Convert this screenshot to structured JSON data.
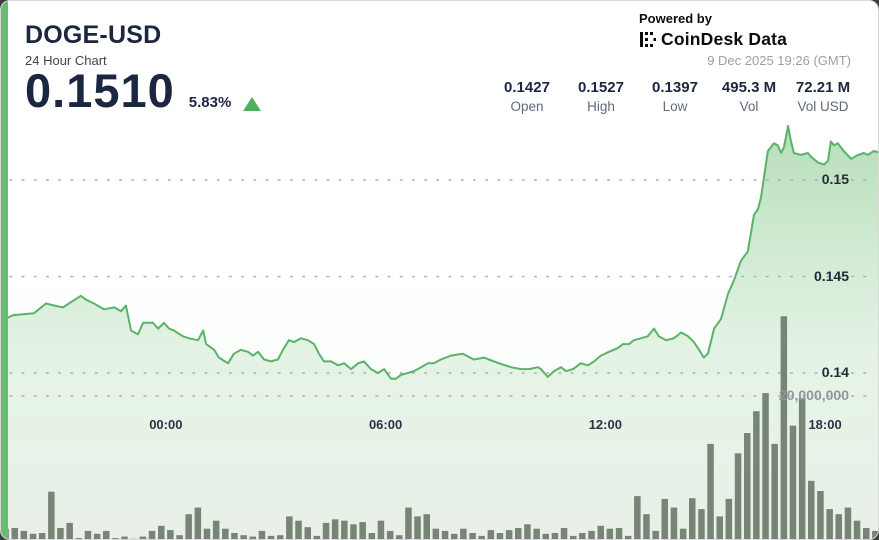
{
  "header": {
    "symbol": "DOGE-USD",
    "subtitle": "24 Hour Chart",
    "price": "0.1510",
    "change_pct": "5.83%",
    "change_direction": "up"
  },
  "stats": [
    {
      "value": "0.1427",
      "label": "Open"
    },
    {
      "value": "0.1527",
      "label": "High"
    },
    {
      "value": "0.1397",
      "label": "Low"
    },
    {
      "value": "495.3 M",
      "label": "Vol"
    },
    {
      "value": "72.21 M",
      "label": "Vol USD"
    }
  ],
  "attribution": {
    "powered_by": "Powered by",
    "brand": "CoinDesk Data",
    "timestamp": "9 Dec 2025 19:26 (GMT)"
  },
  "chart_data": {
    "type": "area",
    "title": "DOGE-USD 24 Hour Chart",
    "x_axis": {
      "unit": "hours_from_start",
      "range": [
        0,
        24
      ],
      "ticks": [
        {
          "label": "00:00",
          "t": 4.5
        },
        {
          "label": "06:00",
          "t": 10.5
        },
        {
          "label": "12:00",
          "t": 16.5
        },
        {
          "label": "18:00",
          "t": 22.5
        }
      ]
    },
    "y_axis_price": {
      "ticks": [
        {
          "label": "0.15",
          "value": 0.15
        },
        {
          "label": "0.145",
          "value": 0.145
        },
        {
          "label": "0.14",
          "value": 0.14
        }
      ],
      "implied_range": [
        0.1385,
        0.1545
      ]
    },
    "y_axis_volume": {
      "gridline_label": "20,000,000",
      "gridline_value_m": 20,
      "max_value_m": 31
    },
    "summary": {
      "open": 0.1427,
      "high": 0.1527,
      "low": 0.1397,
      "close": 0.151,
      "volume": "495.3 M",
      "volume_usd": "72.21 M"
    },
    "price_series": {
      "name": "DOGE-USD price",
      "points": [
        [
          0,
          0.1427
        ],
        [
          0.33,
          0.143
        ],
        [
          0.9,
          0.1431
        ],
        [
          1.23,
          0.1436
        ],
        [
          1.45,
          0.1435
        ],
        [
          1.69,
          0.1434
        ],
        [
          2.18,
          0.144
        ],
        [
          2.32,
          0.1438
        ],
        [
          2.54,
          0.1436
        ],
        [
          2.81,
          0.1433
        ],
        [
          3.09,
          0.1434
        ],
        [
          3.28,
          0.1432
        ],
        [
          3.41,
          0.1435
        ],
        [
          3.55,
          0.1422
        ],
        [
          3.74,
          0.142
        ],
        [
          3.88,
          0.1426
        ],
        [
          4.15,
          0.1426
        ],
        [
          4.29,
          0.1423
        ],
        [
          4.45,
          0.1426
        ],
        [
          4.59,
          0.1423
        ],
        [
          4.72,
          0.1422
        ],
        [
          4.97,
          0.1419
        ],
        [
          5.13,
          0.1418
        ],
        [
          5.38,
          0.1417
        ],
        [
          5.52,
          0.1422
        ],
        [
          5.6,
          0.1415
        ],
        [
          5.82,
          0.1412
        ],
        [
          5.95,
          0.1408
        ],
        [
          6.2,
          0.1405
        ],
        [
          6.36,
          0.141
        ],
        [
          6.55,
          0.1412
        ],
        [
          6.74,
          0.1411
        ],
        [
          6.88,
          0.1409
        ],
        [
          7.02,
          0.1411
        ],
        [
          7.18,
          0.1407
        ],
        [
          7.37,
          0.1406
        ],
        [
          7.56,
          0.1407
        ],
        [
          7.7,
          0.1412
        ],
        [
          7.86,
          0.1417
        ],
        [
          8.0,
          0.1416
        ],
        [
          8.19,
          0.1418
        ],
        [
          8.38,
          0.1417
        ],
        [
          8.55,
          0.1415
        ],
        [
          8.68,
          0.141
        ],
        [
          8.82,
          0.1406
        ],
        [
          9.01,
          0.1406
        ],
        [
          9.2,
          0.1404
        ],
        [
          9.37,
          0.1405
        ],
        [
          9.56,
          0.1402
        ],
        [
          9.75,
          0.1405
        ],
        [
          9.91,
          0.1406
        ],
        [
          10.1,
          0.1402
        ],
        [
          10.29,
          0.14
        ],
        [
          10.46,
          0.1402
        ],
        [
          10.65,
          0.1397
        ],
        [
          10.78,
          0.1397
        ],
        [
          10.92,
          0.1399
        ],
        [
          11.11,
          0.14
        ],
        [
          11.28,
          0.1401
        ],
        [
          11.47,
          0.1403
        ],
        [
          11.66,
          0.1405
        ],
        [
          11.82,
          0.1405
        ],
        [
          12.01,
          0.1407
        ],
        [
          12.29,
          0.1409
        ],
        [
          12.61,
          0.141
        ],
        [
          12.91,
          0.1407
        ],
        [
          13.19,
          0.1408
        ],
        [
          13.32,
          0.1407
        ],
        [
          13.6,
          0.1405
        ],
        [
          13.92,
          0.1403
        ],
        [
          14.2,
          0.1402
        ],
        [
          14.42,
          0.1402
        ],
        [
          14.66,
          0.1403
        ],
        [
          14.74,
          0.1402
        ],
        [
          14.93,
          0.1398
        ],
        [
          15.1,
          0.1401
        ],
        [
          15.29,
          0.1403
        ],
        [
          15.43,
          0.1401
        ],
        [
          15.62,
          0.1402
        ],
        [
          15.83,
          0.1405
        ],
        [
          16.03,
          0.1404
        ],
        [
          16.19,
          0.1406
        ],
        [
          16.38,
          0.1409
        ],
        [
          16.6,
          0.1411
        ],
        [
          16.85,
          0.1413
        ],
        [
          16.98,
          0.1415
        ],
        [
          17.15,
          0.1415
        ],
        [
          17.28,
          0.1417
        ],
        [
          17.47,
          0.1418
        ],
        [
          17.66,
          0.1419
        ],
        [
          17.83,
          0.1423
        ],
        [
          17.96,
          0.1419
        ],
        [
          18.16,
          0.1417
        ],
        [
          18.37,
          0.1418
        ],
        [
          18.57,
          0.1421
        ],
        [
          18.76,
          0.1419
        ],
        [
          18.92,
          0.1416
        ],
        [
          19.06,
          0.1412
        ],
        [
          19.19,
          0.1408
        ],
        [
          19.3,
          0.141
        ],
        [
          19.47,
          0.1423
        ],
        [
          19.66,
          0.1428
        ],
        [
          19.85,
          0.1441
        ],
        [
          20.01,
          0.1448
        ],
        [
          20.2,
          0.1458
        ],
        [
          20.39,
          0.1463
        ],
        [
          20.48,
          0.1473
        ],
        [
          20.56,
          0.1482
        ],
        [
          20.67,
          0.1485
        ],
        [
          20.75,
          0.1491
        ],
        [
          20.94,
          0.1515
        ],
        [
          21.1,
          0.1519
        ],
        [
          21.21,
          0.1518
        ],
        [
          21.3,
          0.1514
        ],
        [
          21.38,
          0.1517
        ],
        [
          21.49,
          0.1528
        ],
        [
          21.57,
          0.152
        ],
        [
          21.65,
          0.1514
        ],
        [
          21.84,
          0.1513
        ],
        [
          22.03,
          0.1514
        ],
        [
          22.12,
          0.1512
        ],
        [
          22.31,
          0.1509
        ],
        [
          22.47,
          0.1508
        ],
        [
          22.58,
          0.151
        ],
        [
          22.66,
          0.152
        ],
        [
          22.74,
          0.1518
        ],
        [
          22.85,
          0.1519
        ],
        [
          23.01,
          0.1515
        ],
        [
          23.21,
          0.1511
        ],
        [
          23.4,
          0.1513
        ],
        [
          23.56,
          0.1514
        ],
        [
          23.67,
          0.1513
        ],
        [
          23.83,
          0.1515
        ],
        [
          24,
          0.1514
        ]
      ]
    },
    "volume_series": {
      "name": "Volume (millions)",
      "bar_values_m": [
        1.7,
        1.8,
        1.4,
        1.0,
        1.1,
        6.8,
        1.8,
        2.5,
        0.4,
        1.4,
        1.0,
        1.4,
        0.4,
        0.6,
        0.3,
        0.6,
        1.4,
        2.1,
        1.5,
        0.8,
        3.7,
        4.6,
        1.7,
        2.8,
        1.7,
        1.1,
        0.8,
        0.6,
        1.4,
        0.7,
        0.8,
        3.4,
        2.8,
        1.9,
        0.7,
        2.5,
        3.0,
        2.8,
        2.3,
        2.6,
        1.1,
        2.8,
        1.4,
        0.8,
        4.6,
        3.4,
        3.7,
        1.7,
        1.4,
        1.0,
        1.7,
        1.1,
        0.7,
        1.5,
        1.1,
        1.5,
        1.8,
        2.3,
        1.7,
        1.0,
        1.1,
        1.8,
        0.7,
        1.1,
        1.4,
        2.1,
        1.7,
        1.8,
        0.7,
        6.2,
        3.7,
        1.4,
        5.8,
        4.6,
        1.7,
        5.9,
        4.4,
        13.4,
        3.4,
        5.8,
        12.1,
        14.9,
        17.9,
        20.4,
        13.4,
        31.0,
        15.9,
        19.7,
        8.3,
        6.9,
        4.4,
        3.7,
        4.6,
        2.8,
        1.8,
        1.4
      ]
    },
    "colors": {
      "line": "#5bb269",
      "fill": "#6ebe73",
      "bars": "#6e7c6b",
      "grid": "#a8b0a8",
      "accent_stripe": "#67bd6d",
      "up_triangle": "#4db25e"
    },
    "legend": "none",
    "grid": "dotted-horizontal"
  }
}
